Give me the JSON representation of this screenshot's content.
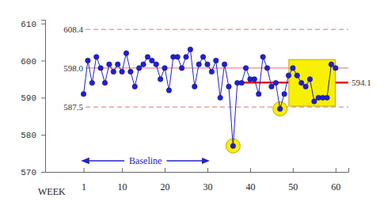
{
  "chart_data": {
    "type": "line",
    "x_label": "WEEK",
    "x": [
      1,
      2,
      3,
      4,
      5,
      6,
      7,
      8,
      9,
      10,
      11,
      12,
      13,
      14,
      15,
      16,
      17,
      18,
      19,
      20,
      21,
      22,
      23,
      24,
      25,
      26,
      27,
      28,
      29,
      30,
      31,
      32,
      33,
      34,
      35,
      36,
      37,
      38,
      39,
      40,
      41,
      42,
      43,
      44,
      45,
      46,
      47,
      48,
      49,
      50,
      51,
      52,
      53,
      54,
      55,
      56,
      57,
      58,
      59,
      60
    ],
    "values": [
      591,
      600,
      594,
      601,
      598,
      594,
      599,
      597,
      599,
      597,
      602,
      597,
      593,
      598,
      599,
      601,
      600,
      599,
      595,
      598,
      592,
      601,
      601,
      598,
      601,
      603,
      593,
      599,
      601,
      599,
      597,
      600,
      590,
      599,
      593,
      577,
      594,
      594,
      598,
      595,
      595,
      591,
      601,
      598,
      593,
      594,
      587,
      591,
      596,
      598,
      596,
      594,
      593,
      595,
      589,
      590,
      590,
      590,
      599,
      598
    ],
    "color": "#1f1fd6",
    "marker": "circle",
    "xlim": [
      -8,
      63
    ],
    "ylim": [
      570,
      611
    ],
    "xticks": [
      1,
      10,
      20,
      30,
      40,
      50,
      60
    ],
    "yticks": [
      570,
      580,
      590,
      600,
      610
    ],
    "reference_lines": [
      {
        "value": 608.4,
        "label": "608.4",
        "line_style": "dashed",
        "color": "#f08a8a"
      },
      {
        "value": 598,
        "label": "598.0",
        "line_style": "solid",
        "color": "#f08a8a"
      },
      {
        "value": 587.5,
        "label": "587.5",
        "line_style": "dashed",
        "color": "#f08a8a"
      }
    ],
    "shift_line": {
      "value": 594.1,
      "label": "594.1",
      "start": 37,
      "color": "#e01c1c"
    },
    "highlights": {
      "points": [
        36,
        47
      ],
      "range": [
        50,
        59
      ],
      "color": "#f7f000"
    },
    "baseline": {
      "label": "Baseline",
      "from": 1,
      "to": 30,
      "color": "#2323c8"
    }
  }
}
